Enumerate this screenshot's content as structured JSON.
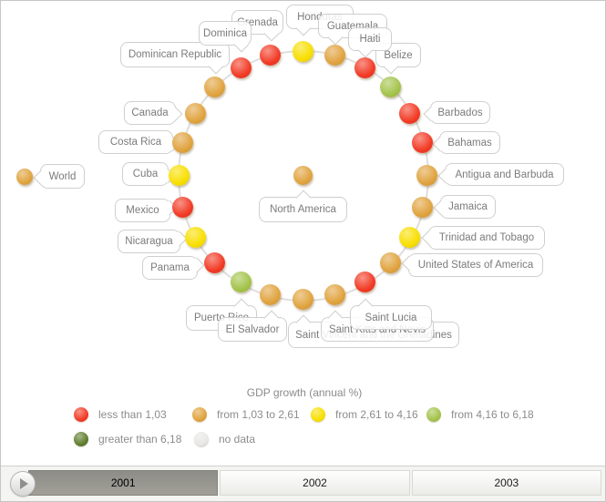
{
  "chart_data": {
    "type": "table",
    "title": "GDP growth (annual %)",
    "columns": [
      "country",
      "gdp_growth_category"
    ],
    "layout_hint": "24 countries evenly spaced clockwise on a circle starting at top; group node in center; world node at left edge",
    "group": {
      "name": "North America",
      "category": "from 1,03 to 2,61"
    },
    "world": {
      "name": "World",
      "category": "from 1,03 to 2,61"
    },
    "countries": [
      {
        "name": "Honduras",
        "category": "from 2,61 to 4,16"
      },
      {
        "name": "Guatemala",
        "category": "from 1,03 to 2,61"
      },
      {
        "name": "Haiti",
        "category": "less than 1,03"
      },
      {
        "name": "Belize",
        "category": "from 4,16 to 6,18"
      },
      {
        "name": "Barbados",
        "category": "less than 1,03"
      },
      {
        "name": "Bahamas",
        "category": "less than 1,03"
      },
      {
        "name": "Antigua and Barbuda",
        "category": "from 1,03 to 2,61"
      },
      {
        "name": "Jamaica",
        "category": "from 1,03 to 2,61"
      },
      {
        "name": "Trinidad and Tobago",
        "category": "from 2,61 to 4,16"
      },
      {
        "name": "United States of America",
        "category": "from 1,03 to 2,61"
      },
      {
        "name": "Saint Lucia",
        "category": "less than 1,03"
      },
      {
        "name": "Saint Kitts and Nevis",
        "category": "from 1,03 to 2,61"
      },
      {
        "name": "Saint Vincent and the Grenadines",
        "category": "from 1,03 to 2,61"
      },
      {
        "name": "El Salvador",
        "category": "from 1,03 to 2,61"
      },
      {
        "name": "Puerto Rico",
        "category": "from 4,16 to 6,18"
      },
      {
        "name": "Panama",
        "category": "less than 1,03"
      },
      {
        "name": "Nicaragua",
        "category": "from 2,61 to 4,16"
      },
      {
        "name": "Mexico",
        "category": "less than 1,03"
      },
      {
        "name": "Cuba",
        "category": "from 2,61 to 4,16"
      },
      {
        "name": "Costa Rica",
        "category": "from 1,03 to 2,61"
      },
      {
        "name": "Canada",
        "category": "from 1,03 to 2,61"
      },
      {
        "name": "Dominican Republic",
        "category": "from 1,03 to 2,61"
      },
      {
        "name": "Dominica",
        "category": "less than 1,03"
      },
      {
        "name": "Grenada",
        "category": "less than 1,03"
      }
    ]
  },
  "legend": {
    "title": "GDP growth (annual %)",
    "items": [
      {
        "label": "less than 1,03",
        "color": "#f23a25"
      },
      {
        "label": "from 1,03 to 2,61",
        "color": "#e0a33e"
      },
      {
        "label": "from 2,61 to 4,16",
        "color": "#f8df00"
      },
      {
        "label": "from 4,16 to 6,18",
        "color": "#a3c34a"
      },
      {
        "label": "greater than 6,18",
        "color": "#5f7d2e"
      },
      {
        "label": "no data",
        "color": "#e7e7e5"
      }
    ]
  },
  "timeline": {
    "years": [
      "2001",
      "2002",
      "2003"
    ],
    "selected": "2001"
  }
}
